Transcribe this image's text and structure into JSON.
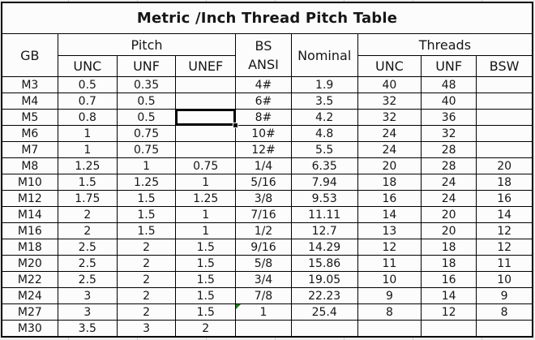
{
  "title": "Metric /Inch Thread Pitch Table",
  "header": {
    "gb": "GB",
    "pitch_group": "Pitch",
    "bs_line1": "BS",
    "bs_line2": "ANSI",
    "nominal": "Nominal",
    "threads_group": "Threads",
    "pitch_cols": [
      "UNC",
      "UNF",
      "UNEF"
    ],
    "threads_cols": [
      "UNC",
      "UNF",
      "BSW"
    ]
  },
  "table": {
    "column_keys": [
      "gb",
      "pitch-unc",
      "pitch-unf",
      "pitch-unef",
      "bs-ansi",
      "nominal",
      "threads-unc",
      "threads-unf",
      "threads-bsw"
    ],
    "rows": [
      [
        "M3",
        "0.5",
        "0.35",
        "",
        "4#",
        "1.9",
        "40",
        "48",
        ""
      ],
      [
        "M4",
        "0.7",
        "0.5",
        "",
        "6#",
        "3.5",
        "32",
        "40",
        ""
      ],
      [
        "M5",
        "0.8",
        "0.5",
        "",
        "8#",
        "4.2",
        "32",
        "36",
        ""
      ],
      [
        "M6",
        "1",
        "0.75",
        "",
        "10#",
        "4.8",
        "24",
        "32",
        ""
      ],
      [
        "M7",
        "1",
        "0.75",
        "",
        "12#",
        "5.5",
        "24",
        "28",
        ""
      ],
      [
        "M8",
        "1.25",
        "1",
        "0.75",
        "1/4",
        "6.35",
        "20",
        "28",
        "20"
      ],
      [
        "M10",
        "1.5",
        "1.25",
        "1",
        "5/16",
        "7.94",
        "18",
        "24",
        "18"
      ],
      [
        "M12",
        "1.75",
        "1.5",
        "1.25",
        "3/8",
        "9.53",
        "16",
        "24",
        "16"
      ],
      [
        "M14",
        "2",
        "1.5",
        "1",
        "7/16",
        "11.11",
        "14",
        "20",
        "14"
      ],
      [
        "M16",
        "2",
        "1.5",
        "1",
        "1/2",
        "12.7",
        "13",
        "20",
        "12"
      ],
      [
        "M18",
        "2.5",
        "2",
        "1.5",
        "9/16",
        "14.29",
        "12",
        "18",
        "12"
      ],
      [
        "M20",
        "2.5",
        "2",
        "1.5",
        "5/8",
        "15.86",
        "11",
        "18",
        "11"
      ],
      [
        "M22",
        "2.5",
        "2",
        "1.5",
        "3/4",
        "19.05",
        "10",
        "16",
        "10"
      ],
      [
        "M24",
        "3",
        "2",
        "1.5",
        "7/8",
        "22.23",
        "9",
        "14",
        "9"
      ],
      [
        "M27",
        "3",
        "2",
        "1.5",
        "1",
        "25.4",
        "8",
        "12",
        "8"
      ],
      [
        "M30",
        "3.5",
        "3",
        "2",
        "",
        "",
        "",
        "",
        ""
      ]
    ]
  },
  "selection": {
    "row_index": 2,
    "col_index": 3
  },
  "flags": {
    "number_stored_as_text": {
      "row_index": 14,
      "col_index": 4
    }
  },
  "colors": {
    "border": "#000000",
    "cell_background": "#fcfcfc",
    "page_background": "#f0f0f0",
    "text": "#161616",
    "flag_green": "#1f7a1f"
  }
}
